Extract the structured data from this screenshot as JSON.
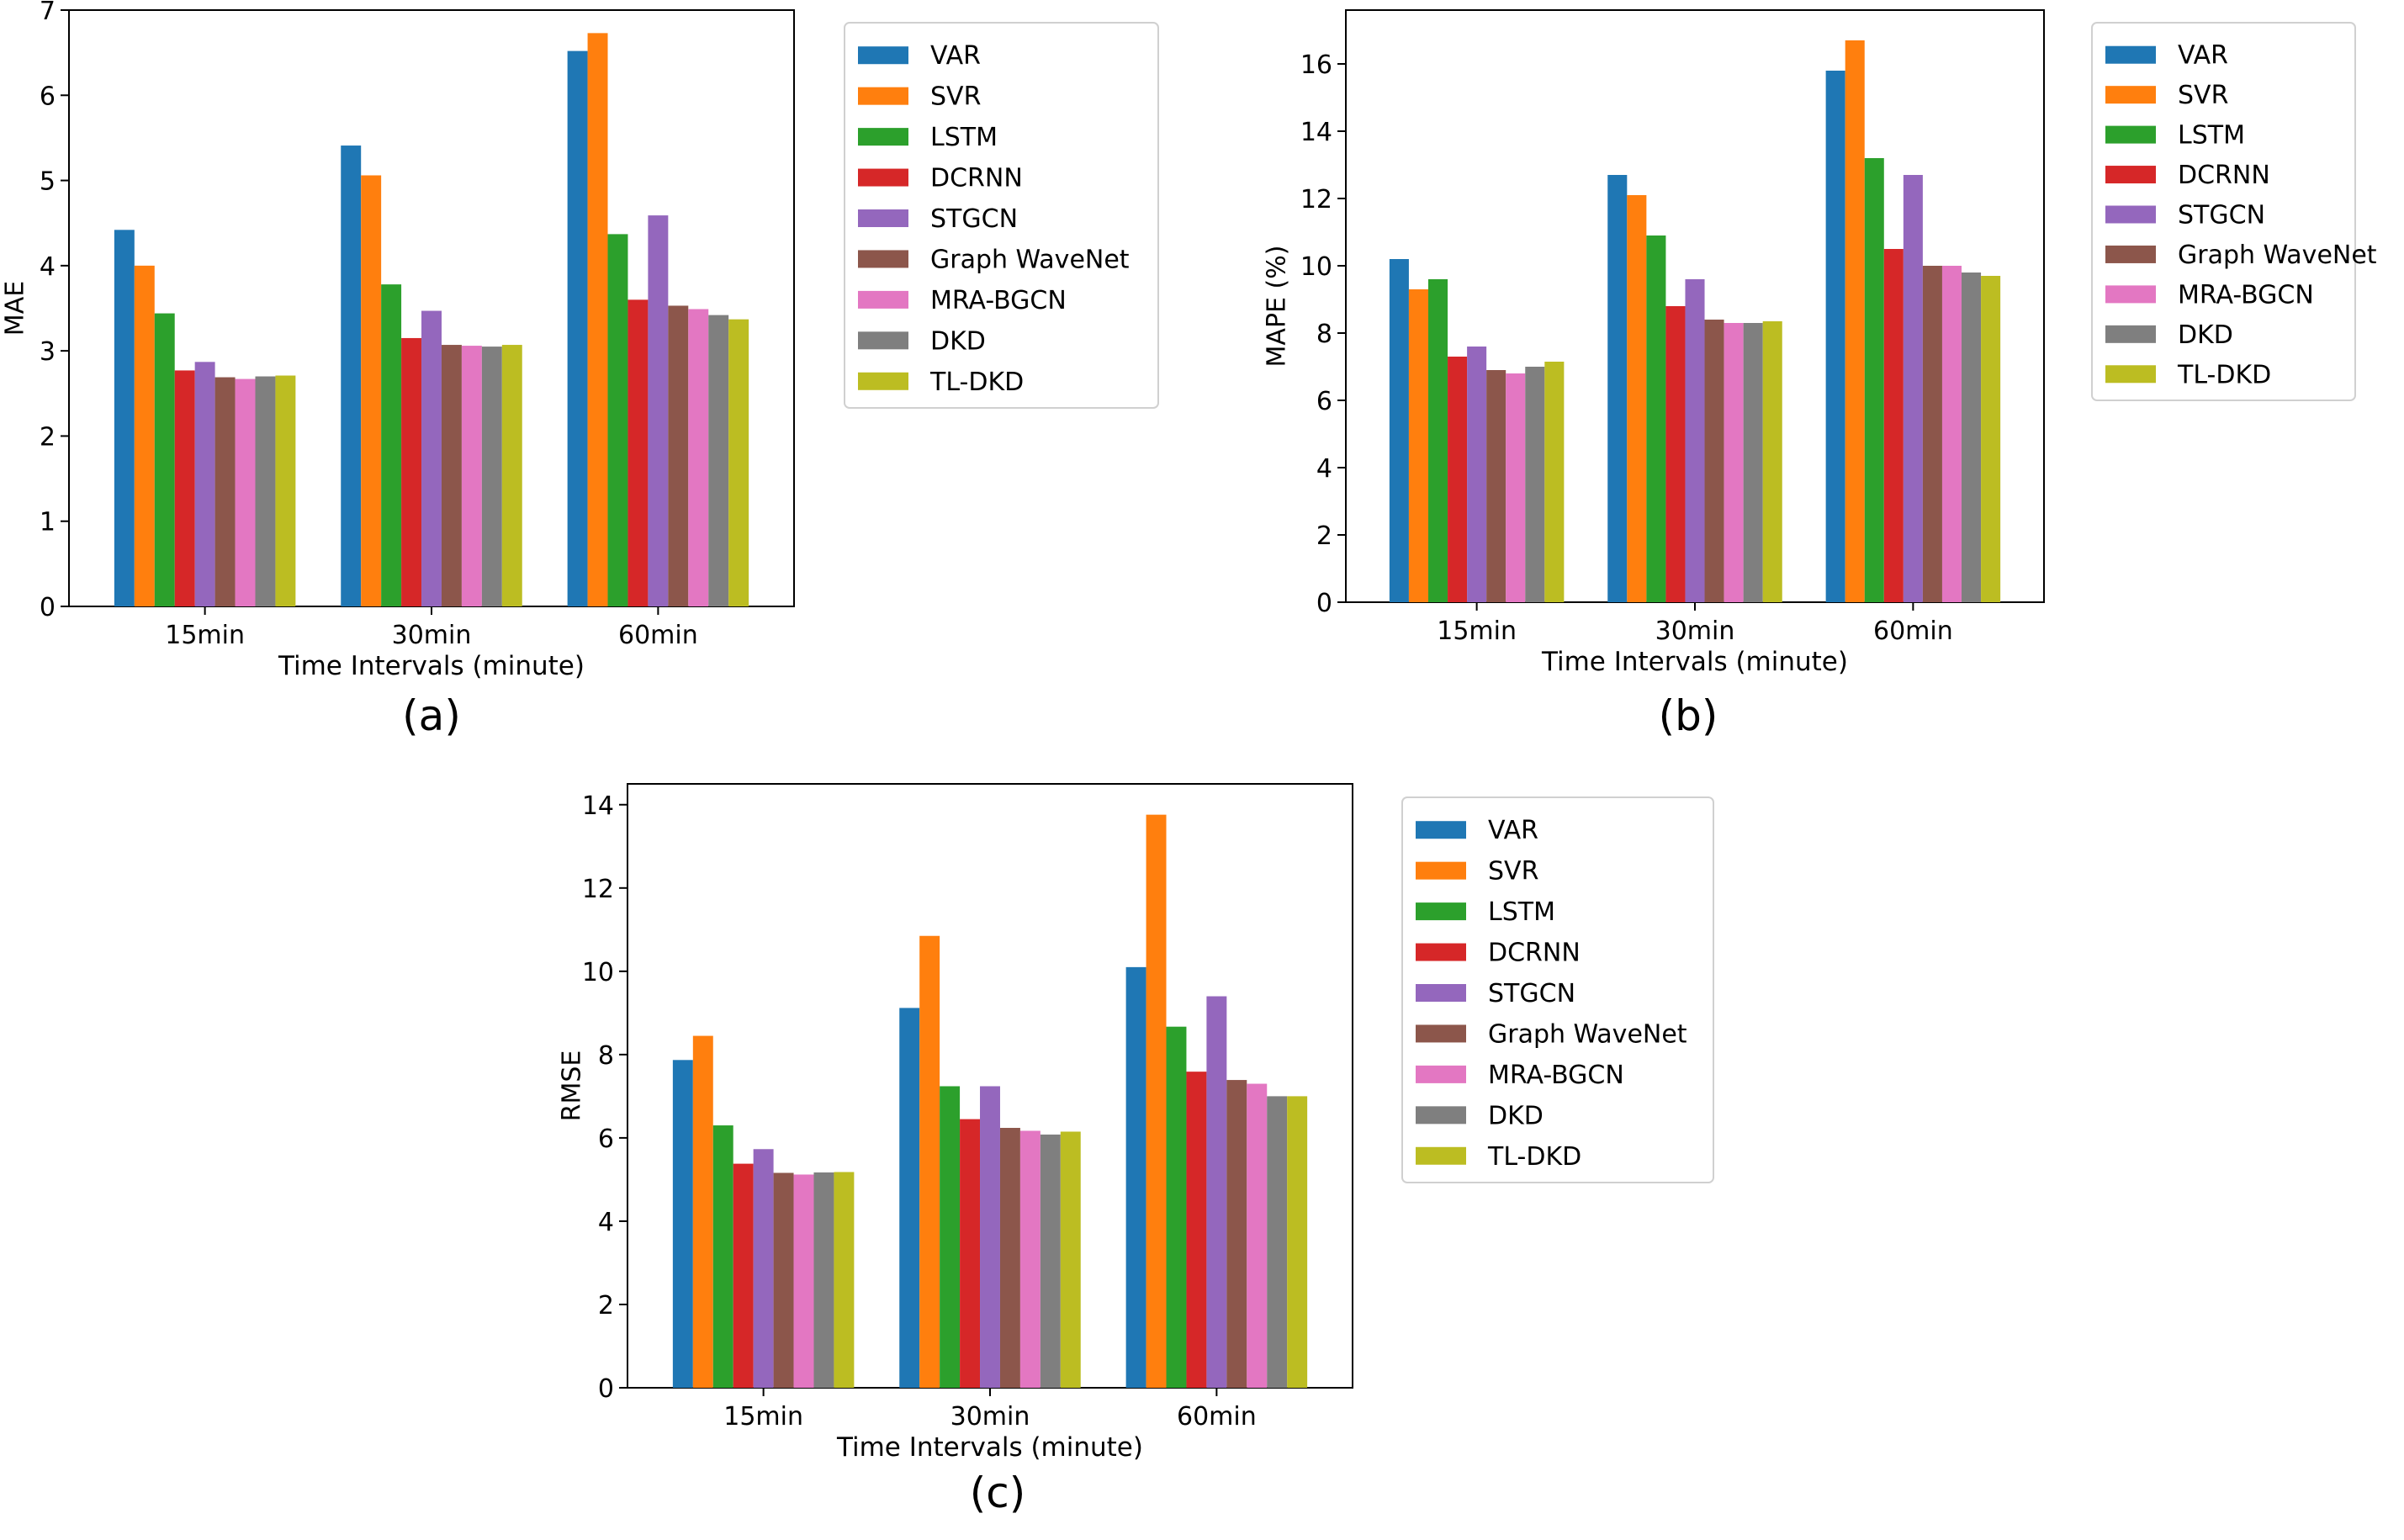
{
  "series_colors": {
    "VAR": "#1f77b4",
    "SVR": "#ff7f0e",
    "LSTM": "#2ca02c",
    "DCRNN": "#d62728",
    "STGCN": "#9467bd",
    "Graph WaveNet": "#8c564b",
    "MRA-BGCN": "#e377c2",
    "DKD": "#7f7f7f",
    "TL-DKD": "#bcbd22"
  },
  "chart_data": [
    {
      "type": "bar",
      "panel_label": "(a)",
      "categories": [
        "15min",
        "30min",
        "60min"
      ],
      "xlabel": "Time Intervals (minute)",
      "ylabel": "MAE",
      "ylim": [
        0,
        7
      ],
      "yticks": [
        0,
        1,
        2,
        3,
        4,
        5,
        6,
        7
      ],
      "ytick_labels": [
        "0",
        "1",
        "2",
        "3",
        "4",
        "5",
        "6",
        "7"
      ],
      "legend_position": "outside-right",
      "series": [
        {
          "name": "VAR",
          "values": [
            4.42,
            5.41,
            6.52
          ]
        },
        {
          "name": "SVR",
          "values": [
            4.0,
            5.06,
            6.73
          ]
        },
        {
          "name": "LSTM",
          "values": [
            3.44,
            3.78,
            4.37
          ]
        },
        {
          "name": "DCRNN",
          "values": [
            2.77,
            3.15,
            3.6
          ]
        },
        {
          "name": "STGCN",
          "values": [
            2.87,
            3.47,
            4.59
          ]
        },
        {
          "name": "Graph WaveNet",
          "values": [
            2.69,
            3.07,
            3.53
          ]
        },
        {
          "name": "MRA-BGCN",
          "values": [
            2.67,
            3.06,
            3.49
          ]
        },
        {
          "name": "DKD",
          "values": [
            2.7,
            3.05,
            3.42
          ]
        },
        {
          "name": "TL-DKD",
          "values": [
            2.71,
            3.07,
            3.37
          ]
        }
      ]
    },
    {
      "type": "bar",
      "panel_label": "(b)",
      "categories": [
        "15min",
        "30min",
        "60min"
      ],
      "xlabel": "Time Intervals (minute)",
      "ylabel": "MAPE (%)",
      "ylim": [
        0,
        17.6
      ],
      "yticks": [
        0,
        2,
        4,
        6,
        8,
        10,
        12,
        14,
        16
      ],
      "ytick_labels": [
        "0",
        "2",
        "4",
        "6",
        "8",
        "10",
        "12",
        "14",
        "16"
      ],
      "legend_position": "outside-right",
      "series": [
        {
          "name": "VAR",
          "values": [
            10.2,
            12.7,
            15.8
          ]
        },
        {
          "name": "SVR",
          "values": [
            9.3,
            12.1,
            16.7
          ]
        },
        {
          "name": "LSTM",
          "values": [
            9.6,
            10.9,
            13.2
          ]
        },
        {
          "name": "DCRNN",
          "values": [
            7.3,
            8.8,
            10.5
          ]
        },
        {
          "name": "STGCN",
          "values": [
            7.6,
            9.6,
            12.7
          ]
        },
        {
          "name": "Graph WaveNet",
          "values": [
            6.9,
            8.4,
            10.0
          ]
        },
        {
          "name": "MRA-BGCN",
          "values": [
            6.8,
            8.3,
            10.0
          ]
        },
        {
          "name": "DKD",
          "values": [
            7.0,
            8.3,
            9.8
          ]
        },
        {
          "name": "TL-DKD",
          "values": [
            7.15,
            8.35,
            9.7
          ]
        }
      ]
    },
    {
      "type": "bar",
      "panel_label": "(c)",
      "categories": [
        "15min",
        "30min",
        "60min"
      ],
      "xlabel": "Time Intervals (minute)",
      "ylabel": "RMSE",
      "ylim": [
        0,
        14.5
      ],
      "yticks": [
        0,
        2,
        4,
        6,
        8,
        10,
        12,
        14
      ],
      "ytick_labels": [
        "0",
        "2",
        "4",
        "6",
        "8",
        "10",
        "12",
        "14"
      ],
      "legend_position": "outside-right",
      "series": [
        {
          "name": "VAR",
          "values": [
            7.87,
            9.12,
            10.1
          ]
        },
        {
          "name": "SVR",
          "values": [
            8.45,
            10.85,
            13.76
          ]
        },
        {
          "name": "LSTM",
          "values": [
            6.3,
            7.24,
            8.67
          ]
        },
        {
          "name": "DCRNN",
          "values": [
            5.38,
            6.45,
            7.59
          ]
        },
        {
          "name": "STGCN",
          "values": [
            5.73,
            7.24,
            9.4
          ]
        },
        {
          "name": "Graph WaveNet",
          "values": [
            5.16,
            6.24,
            7.39
          ]
        },
        {
          "name": "MRA-BGCN",
          "values": [
            5.12,
            6.17,
            7.3
          ]
        },
        {
          "name": "DKD",
          "values": [
            5.17,
            6.08,
            7.0
          ]
        },
        {
          "name": "TL-DKD",
          "values": [
            5.18,
            6.15,
            7.0
          ]
        }
      ]
    }
  ]
}
